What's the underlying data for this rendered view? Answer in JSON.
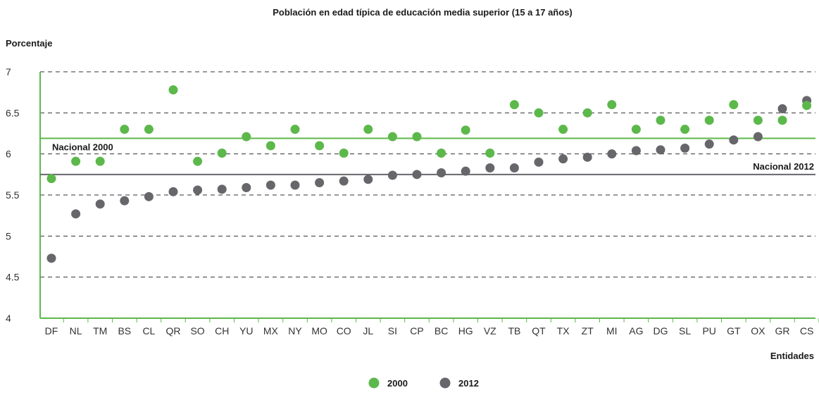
{
  "chart_data": {
    "type": "scatter",
    "title": "Población en edad típica de educación media superior (15 a 17 años)",
    "ylabel": "Porcentaje",
    "xlabel": "Entidades",
    "ylim": [
      4,
      7
    ],
    "yticks": [
      "4",
      "4.5",
      "5",
      "5.5",
      "6",
      "6.5",
      "7"
    ],
    "categories": [
      "DF",
      "NL",
      "TM",
      "BS",
      "CL",
      "QR",
      "SO",
      "CH",
      "YU",
      "MX",
      "NY",
      "MO",
      "CO",
      "JL",
      "SI",
      "CP",
      "BC",
      "HG",
      "VZ",
      "TB",
      "QT",
      "TX",
      "ZT",
      "MI",
      "AG",
      "DG",
      "SL",
      "PU",
      "GT",
      "OX",
      "GR",
      "CS"
    ],
    "series": [
      {
        "name": "2000",
        "color": "#5cb84a",
        "values": [
          5.7,
          5.91,
          5.91,
          6.3,
          6.3,
          6.78,
          5.91,
          6.01,
          6.21,
          6.1,
          6.3,
          6.1,
          6.01,
          6.3,
          6.21,
          6.21,
          6.01,
          6.29,
          6.01,
          6.6,
          6.5,
          6.3,
          6.5,
          6.6,
          6.3,
          6.41,
          6.3,
          6.41,
          6.6,
          6.41,
          6.41,
          6.59
        ]
      },
      {
        "name": "2012",
        "color": "#66666b",
        "values": [
          4.73,
          5.27,
          5.39,
          5.43,
          5.48,
          5.54,
          5.56,
          5.57,
          5.59,
          5.62,
          5.62,
          5.65,
          5.67,
          5.69,
          5.74,
          5.75,
          5.77,
          5.79,
          5.83,
          5.83,
          5.9,
          5.94,
          5.96,
          6.0,
          6.04,
          6.05,
          6.07,
          6.12,
          6.17,
          6.21,
          6.55,
          6.65
        ]
      }
    ],
    "reference_lines": [
      {
        "label": "Nacional 2000",
        "value": 6.19,
        "color": "#5cb84a"
      },
      {
        "label": "Nacional 2012",
        "value": 5.75,
        "color": "#66666b"
      }
    ],
    "grid": true,
    "legend": "bottom-center"
  }
}
